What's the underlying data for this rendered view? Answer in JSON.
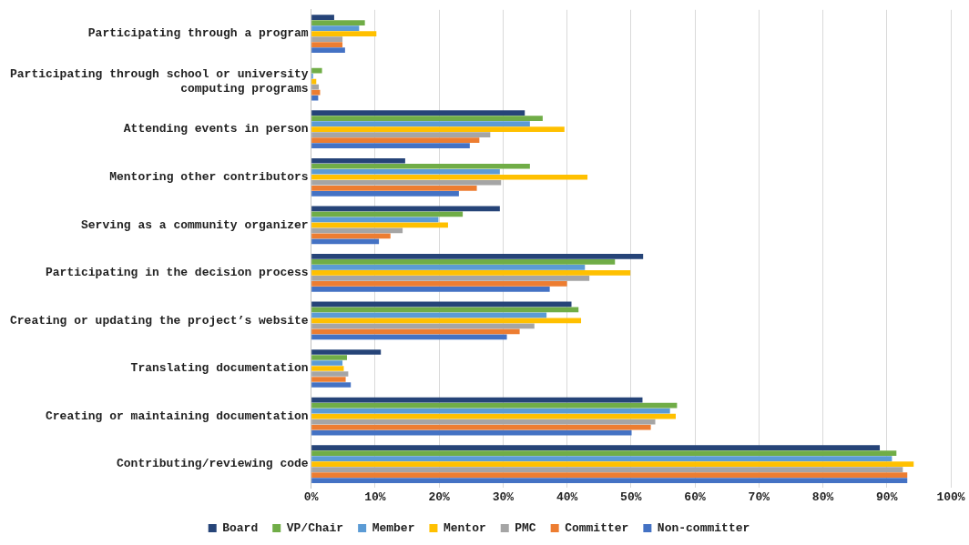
{
  "chart_data": {
    "type": "bar",
    "orientation": "horizontal",
    "categories": [
      "Participating through a program",
      "Participating through school or university computing programs",
      "Attending events in person",
      "Mentoring other contributors",
      "Serving as a community organizer",
      "Participating in the decision process",
      "Creating or updating the project’s website",
      "Translating documentation",
      "Creating or maintaining documentation",
      "Contributing/reviewing code"
    ],
    "series": [
      {
        "name": "Board",
        "color": "#264478",
        "values": [
          3.6,
          0,
          33.4,
          14.7,
          29.5,
          51.9,
          40.7,
          10.9,
          51.8,
          88.9
        ]
      },
      {
        "name": "VP/Chair",
        "color": "#70ad47",
        "values": [
          8.4,
          1.7,
          36.2,
          34.2,
          23.7,
          47.5,
          41.8,
          5.6,
          57.2,
          91.5
        ]
      },
      {
        "name": "Member",
        "color": "#5b9bd5",
        "values": [
          7.5,
          0.3,
          34.2,
          29.5,
          19.9,
          42.8,
          36.8,
          4.9,
          56.1,
          90.8
        ]
      },
      {
        "name": "Mentor",
        "color": "#ffc000",
        "values": [
          10.2,
          0.8,
          39.6,
          43.2,
          21.4,
          49.9,
          42.2,
          5.1,
          57,
          94.2
        ]
      },
      {
        "name": "PMC",
        "color": "#a5a5a5",
        "values": [
          4.9,
          1.2,
          28,
          29.7,
          14.3,
          43.5,
          34.9,
          5.8,
          53.8,
          92.5
        ]
      },
      {
        "name": "Committer",
        "color": "#ed7d31",
        "values": [
          4.9,
          1.4,
          26.3,
          25.9,
          12.4,
          40,
          32.6,
          5.4,
          53.1,
          93.2
        ]
      },
      {
        "name": "Non-committer",
        "color": "#4472c4",
        "values": [
          5.3,
          1.1,
          24.8,
          23.1,
          10.6,
          37.3,
          30.6,
          6.2,
          50.1,
          93.2
        ]
      }
    ],
    "xlim": [
      0,
      100
    ],
    "xticks": [
      {
        "value": 0,
        "label": "0%"
      },
      {
        "value": 10,
        "label": "10%"
      },
      {
        "value": 20,
        "label": "20%"
      },
      {
        "value": 30,
        "label": "30%"
      },
      {
        "value": 40,
        "label": "40%"
      },
      {
        "value": 50,
        "label": "50%"
      },
      {
        "value": 60,
        "label": "60%"
      },
      {
        "value": 70,
        "label": "70%"
      },
      {
        "value": 80,
        "label": "80%"
      },
      {
        "value": 90,
        "label": "90%"
      },
      {
        "value": 100,
        "label": "100%"
      }
    ],
    "grid": "x",
    "legend": "bottom"
  }
}
